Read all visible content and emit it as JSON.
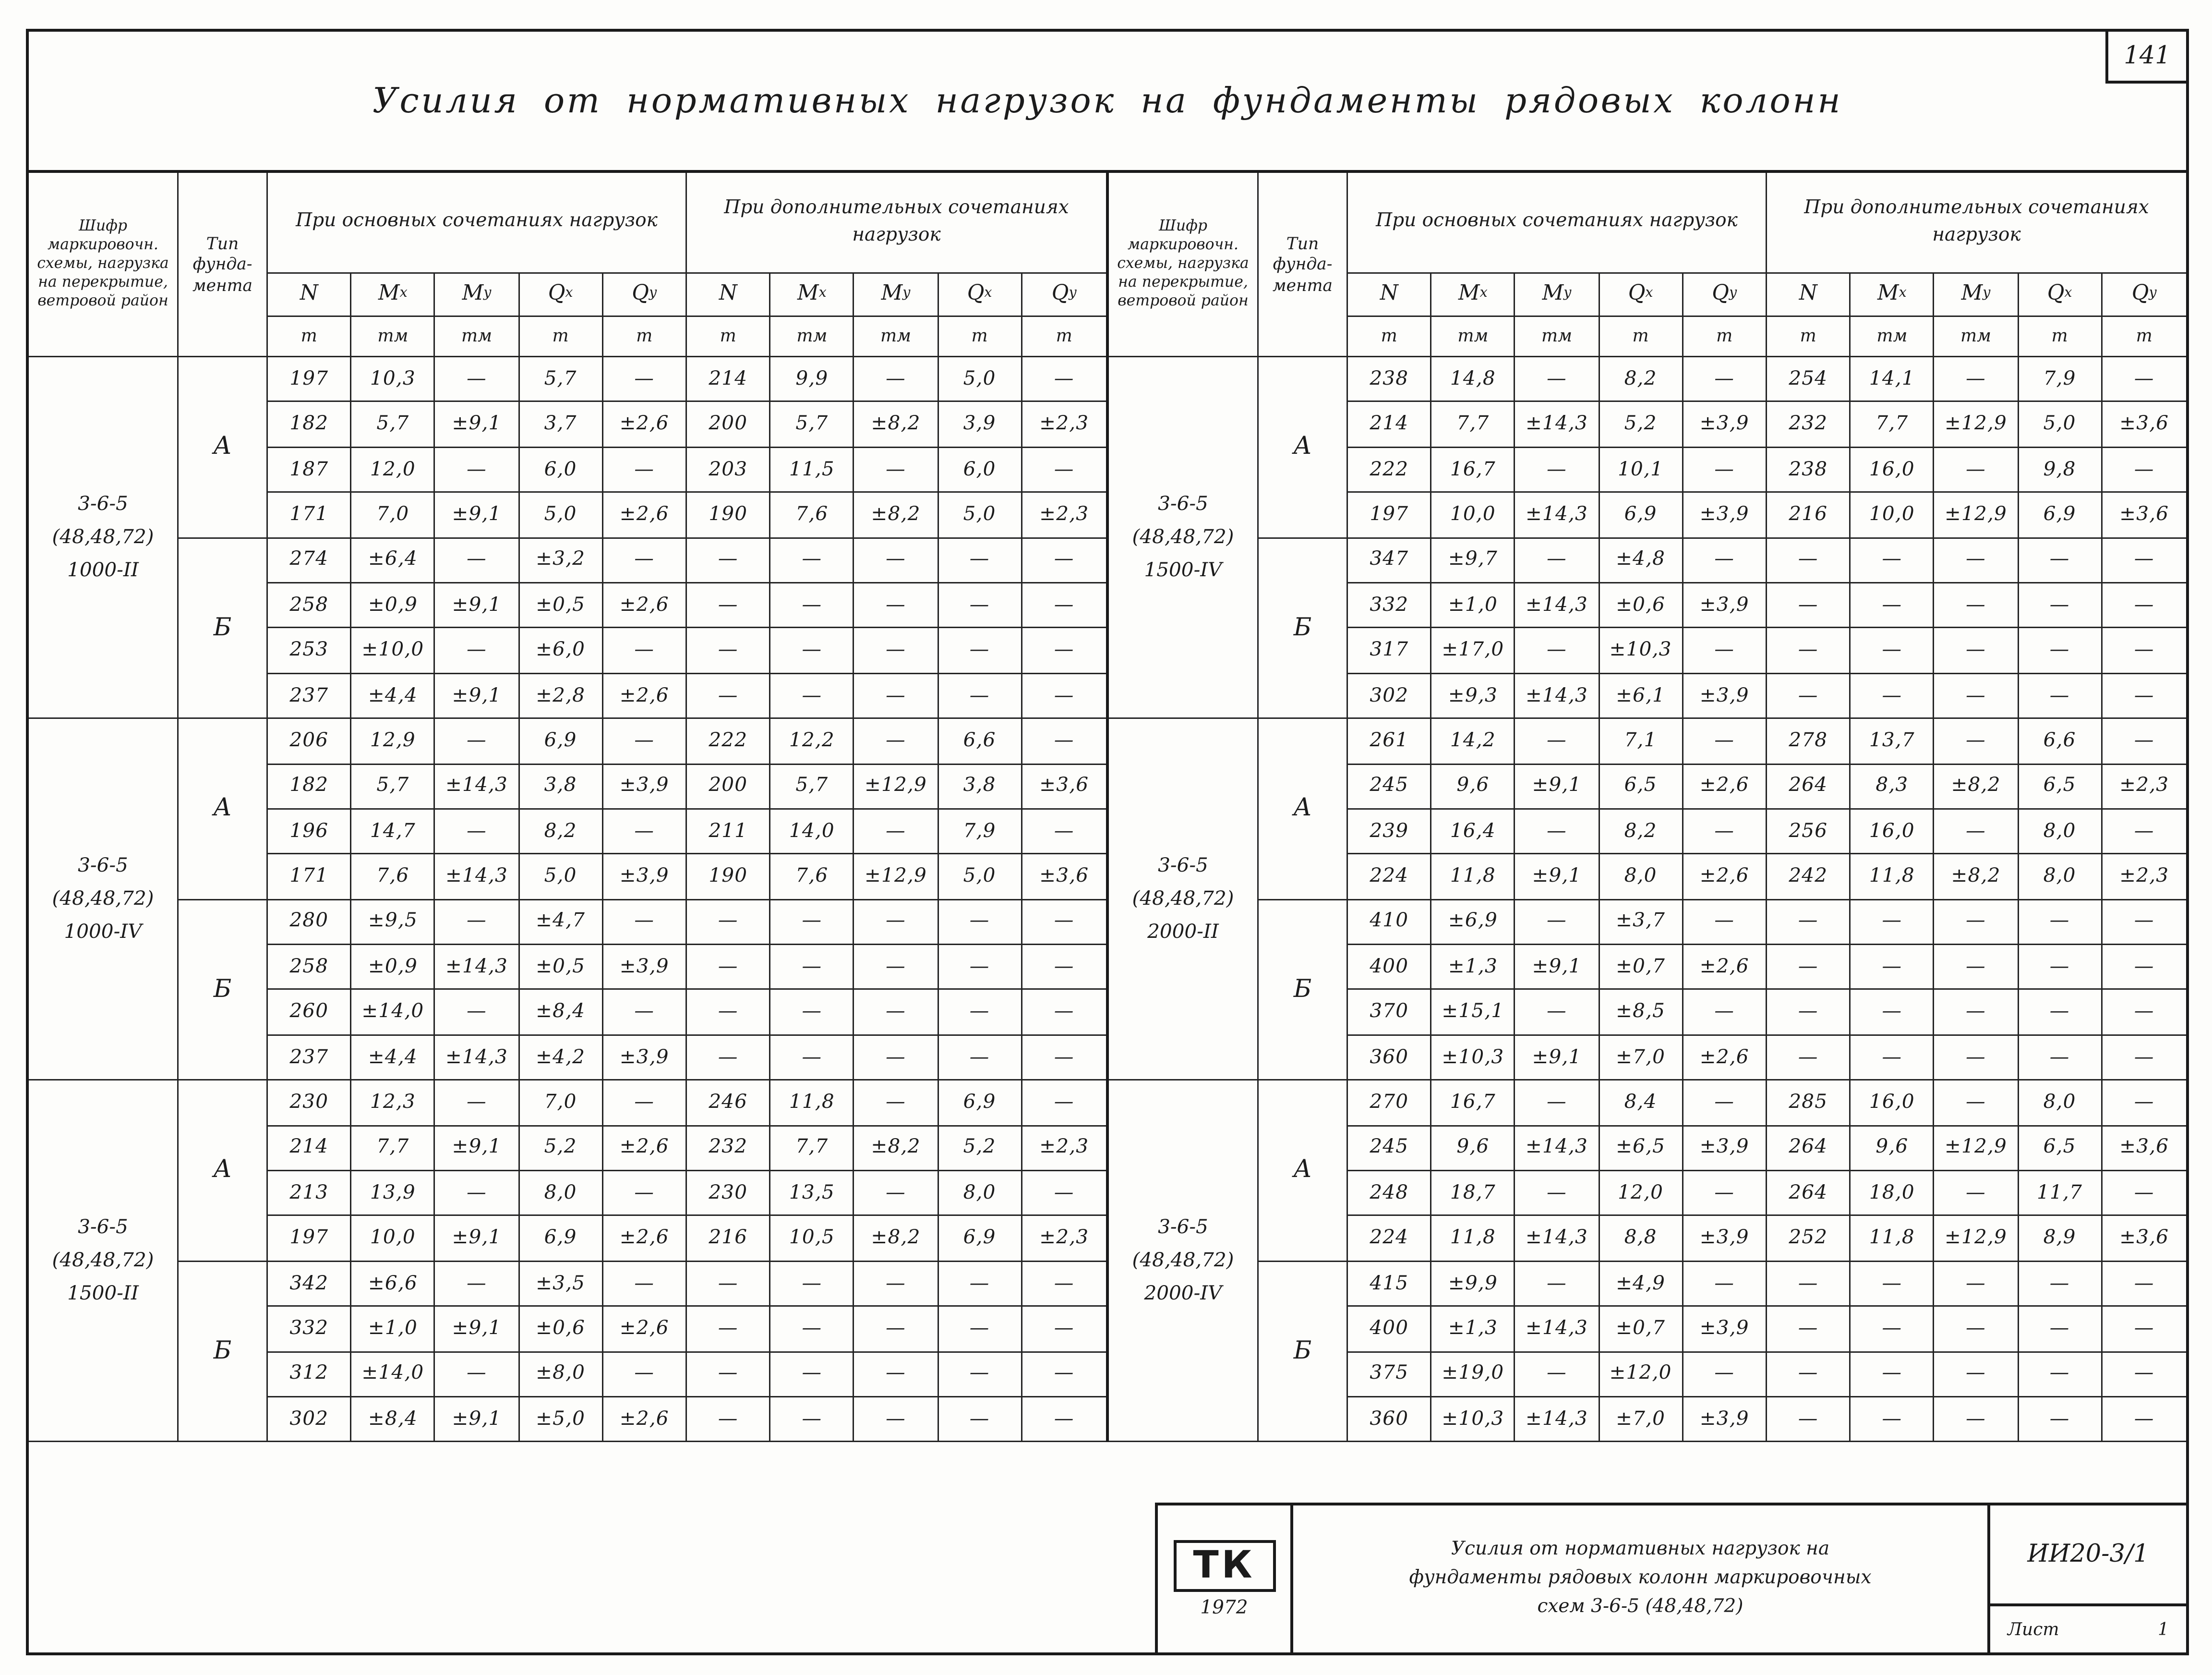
{
  "page": {
    "page_number": "141",
    "title": "Усилия от нормативных нагрузок на фундаменты рядовых колонн"
  },
  "table": {
    "col_headers": {
      "shifr": "Шифр маркировочн. схемы, нагрузка на перекрытие, ветровой район",
      "tip": "Тип фунда- мента",
      "main": "При основных сочетаниях нагрузок",
      "additional": "При дополнительных сочетаниях нагрузок",
      "symbols": [
        "N",
        "M~x",
        "M~y",
        "Q~x",
        "Q~y",
        "N",
        "M~x",
        "M~y",
        "Q~x",
        "Q~y"
      ],
      "units": [
        "т",
        "тм",
        "тм",
        "т",
        "т",
        "т",
        "тм",
        "тм",
        "т",
        "т"
      ]
    },
    "halves": [
      {
        "groups": [
          {
            "scheme_lines": [
              "3-6-5",
              "(48,48,72)",
              "1000-II"
            ],
            "sections": [
              {
                "type": "А",
                "rows": [
                  [
                    "197",
                    "10,3",
                    "—",
                    "5,7",
                    "—",
                    "214",
                    "9,9",
                    "—",
                    "5,0",
                    "—"
                  ],
                  [
                    "182",
                    "5,7",
                    "±9,1",
                    "3,7",
                    "±2,6",
                    "200",
                    "5,7",
                    "±8,2",
                    "3,9",
                    "±2,3"
                  ],
                  [
                    "187",
                    "12,0",
                    "—",
                    "6,0",
                    "—",
                    "203",
                    "11,5",
                    "—",
                    "6,0",
                    "—"
                  ],
                  [
                    "171",
                    "7,0",
                    "±9,1",
                    "5,0",
                    "±2,6",
                    "190",
                    "7,6",
                    "±8,2",
                    "5,0",
                    "±2,3"
                  ]
                ]
              },
              {
                "type": "Б",
                "rows": [
                  [
                    "274",
                    "±6,4",
                    "—",
                    "±3,2",
                    "—",
                    "—",
                    "—",
                    "—",
                    "—",
                    "—"
                  ],
                  [
                    "258",
                    "±0,9",
                    "±9,1",
                    "±0,5",
                    "±2,6",
                    "—",
                    "—",
                    "—",
                    "—",
                    "—"
                  ],
                  [
                    "253",
                    "±10,0",
                    "—",
                    "±6,0",
                    "—",
                    "—",
                    "—",
                    "—",
                    "—",
                    "—"
                  ],
                  [
                    "237",
                    "±4,4",
                    "±9,1",
                    "±2,8",
                    "±2,6",
                    "—",
                    "—",
                    "—",
                    "—",
                    "—"
                  ]
                ]
              }
            ]
          },
          {
            "scheme_lines": [
              "3-6-5",
              "(48,48,72)",
              "1000-IV"
            ],
            "sections": [
              {
                "type": "А",
                "rows": [
                  [
                    "206",
                    "12,9",
                    "—",
                    "6,9",
                    "—",
                    "222",
                    "12,2",
                    "—",
                    "6,6",
                    "—"
                  ],
                  [
                    "182",
                    "5,7",
                    "±14,3",
                    "3,8",
                    "±3,9",
                    "200",
                    "5,7",
                    "±12,9",
                    "3,8",
                    "±3,6"
                  ],
                  [
                    "196",
                    "14,7",
                    "—",
                    "8,2",
                    "—",
                    "211",
                    "14,0",
                    "—",
                    "7,9",
                    "—"
                  ],
                  [
                    "171",
                    "7,6",
                    "±14,3",
                    "5,0",
                    "±3,9",
                    "190",
                    "7,6",
                    "±12,9",
                    "5,0",
                    "±3,6"
                  ]
                ]
              },
              {
                "type": "Б",
                "rows": [
                  [
                    "280",
                    "±9,5",
                    "—",
                    "±4,7",
                    "—",
                    "—",
                    "—",
                    "—",
                    "—",
                    "—"
                  ],
                  [
                    "258",
                    "±0,9",
                    "±14,3",
                    "±0,5",
                    "±3,9",
                    "—",
                    "—",
                    "—",
                    "—",
                    "—"
                  ],
                  [
                    "260",
                    "±14,0",
                    "—",
                    "±8,4",
                    "—",
                    "—",
                    "—",
                    "—",
                    "—",
                    "—"
                  ],
                  [
                    "237",
                    "±4,4",
                    "±14,3",
                    "±4,2",
                    "±3,9",
                    "—",
                    "—",
                    "—",
                    "—",
                    "—"
                  ]
                ]
              }
            ]
          },
          {
            "scheme_lines": [
              "3-6-5",
              "(48,48,72)",
              "1500-II"
            ],
            "sections": [
              {
                "type": "А",
                "rows": [
                  [
                    "230",
                    "12,3",
                    "—",
                    "7,0",
                    "—",
                    "246",
                    "11,8",
                    "—",
                    "6,9",
                    "—"
                  ],
                  [
                    "214",
                    "7,7",
                    "±9,1",
                    "5,2",
                    "±2,6",
                    "232",
                    "7,7",
                    "±8,2",
                    "5,2",
                    "±2,3"
                  ],
                  [
                    "213",
                    "13,9",
                    "—",
                    "8,0",
                    "—",
                    "230",
                    "13,5",
                    "—",
                    "8,0",
                    "—"
                  ],
                  [
                    "197",
                    "10,0",
                    "±9,1",
                    "6,9",
                    "±2,6",
                    "216",
                    "10,5",
                    "±8,2",
                    "6,9",
                    "±2,3"
                  ]
                ]
              },
              {
                "type": "Б",
                "rows": [
                  [
                    "342",
                    "±6,6",
                    "—",
                    "±3,5",
                    "—",
                    "—",
                    "—",
                    "—",
                    "—",
                    "—"
                  ],
                  [
                    "332",
                    "±1,0",
                    "±9,1",
                    "±0,6",
                    "±2,6",
                    "—",
                    "—",
                    "—",
                    "—",
                    "—"
                  ],
                  [
                    "312",
                    "±14,0",
                    "—",
                    "±8,0",
                    "—",
                    "—",
                    "—",
                    "—",
                    "—",
                    "—"
                  ],
                  [
                    "302",
                    "±8,4",
                    "±9,1",
                    "±5,0",
                    "±2,6",
                    "—",
                    "—",
                    "—",
                    "—",
                    "—"
                  ]
                ]
              }
            ]
          }
        ]
      },
      {
        "groups": [
          {
            "scheme_lines": [
              "3-6-5",
              "(48,48,72)",
              "1500-IV"
            ],
            "sections": [
              {
                "type": "А",
                "rows": [
                  [
                    "238",
                    "14,8",
                    "—",
                    "8,2",
                    "—",
                    "254",
                    "14,1",
                    "—",
                    "7,9",
                    "—"
                  ],
                  [
                    "214",
                    "7,7",
                    "±14,3",
                    "5,2",
                    "±3,9",
                    "232",
                    "7,7",
                    "±12,9",
                    "5,0",
                    "±3,6"
                  ],
                  [
                    "222",
                    "16,7",
                    "—",
                    "10,1",
                    "—",
                    "238",
                    "16,0",
                    "—",
                    "9,8",
                    "—"
                  ],
                  [
                    "197",
                    "10,0",
                    "±14,3",
                    "6,9",
                    "±3,9",
                    "216",
                    "10,0",
                    "±12,9",
                    "6,9",
                    "±3,6"
                  ]
                ]
              },
              {
                "type": "Б",
                "rows": [
                  [
                    "347",
                    "±9,7",
                    "—",
                    "±4,8",
                    "—",
                    "—",
                    "—",
                    "—",
                    "—",
                    "—"
                  ],
                  [
                    "332",
                    "±1,0",
                    "±14,3",
                    "±0,6",
                    "±3,9",
                    "—",
                    "—",
                    "—",
                    "—",
                    "—"
                  ],
                  [
                    "317",
                    "±17,0",
                    "—",
                    "±10,3",
                    "—",
                    "—",
                    "—",
                    "—",
                    "—",
                    "—"
                  ],
                  [
                    "302",
                    "±9,3",
                    "±14,3",
                    "±6,1",
                    "±3,9",
                    "—",
                    "—",
                    "—",
                    "—",
                    "—"
                  ]
                ]
              }
            ]
          },
          {
            "scheme_lines": [
              "3-6-5",
              "(48,48,72)",
              "2000-II"
            ],
            "sections": [
              {
                "type": "А",
                "rows": [
                  [
                    "261",
                    "14,2",
                    "—",
                    "7,1",
                    "—",
                    "278",
                    "13,7",
                    "—",
                    "6,6",
                    "—"
                  ],
                  [
                    "245",
                    "9,6",
                    "±9,1",
                    "6,5",
                    "±2,6",
                    "264",
                    "8,3",
                    "±8,2",
                    "6,5",
                    "±2,3"
                  ],
                  [
                    "239",
                    "16,4",
                    "—",
                    "8,2",
                    "—",
                    "256",
                    "16,0",
                    "—",
                    "8,0",
                    "—"
                  ],
                  [
                    "224",
                    "11,8",
                    "±9,1",
                    "8,0",
                    "±2,6",
                    "242",
                    "11,8",
                    "±8,2",
                    "8,0",
                    "±2,3"
                  ]
                ]
              },
              {
                "type": "Б",
                "rows": [
                  [
                    "410",
                    "±6,9",
                    "—",
                    "±3,7",
                    "—",
                    "—",
                    "—",
                    "—",
                    "—",
                    "—"
                  ],
                  [
                    "400",
                    "±1,3",
                    "±9,1",
                    "±0,7",
                    "±2,6",
                    "—",
                    "—",
                    "—",
                    "—",
                    "—"
                  ],
                  [
                    "370",
                    "±15,1",
                    "—",
                    "±8,5",
                    "—",
                    "—",
                    "—",
                    "—",
                    "—",
                    "—"
                  ],
                  [
                    "360",
                    "±10,3",
                    "±9,1",
                    "±7,0",
                    "±2,6",
                    "—",
                    "—",
                    "—",
                    "—",
                    "—"
                  ]
                ]
              }
            ]
          },
          {
            "scheme_lines": [
              "3-6-5",
              "(48,48,72)",
              "2000-IV"
            ],
            "sections": [
              {
                "type": "А",
                "rows": [
                  [
                    "270",
                    "16,7",
                    "—",
                    "8,4",
                    "—",
                    "285",
                    "16,0",
                    "—",
                    "8,0",
                    "—"
                  ],
                  [
                    "245",
                    "9,6",
                    "±14,3",
                    "±6,5",
                    "±3,9",
                    "264",
                    "9,6",
                    "±12,9",
                    "6,5",
                    "±3,6"
                  ],
                  [
                    "248",
                    "18,7",
                    "—",
                    "12,0",
                    "—",
                    "264",
                    "18,0",
                    "—",
                    "11,7",
                    "—"
                  ],
                  [
                    "224",
                    "11,8",
                    "±14,3",
                    "8,8",
                    "±3,9",
                    "252",
                    "11,8",
                    "±12,9",
                    "8,9",
                    "±3,6"
                  ]
                ]
              },
              {
                "type": "Б",
                "rows": [
                  [
                    "415",
                    "±9,9",
                    "—",
                    "±4,9",
                    "—",
                    "—",
                    "—",
                    "—",
                    "—",
                    "—"
                  ],
                  [
                    "400",
                    "±1,3",
                    "±14,3",
                    "±0,7",
                    "±3,9",
                    "—",
                    "—",
                    "—",
                    "—",
                    "—"
                  ],
                  [
                    "375",
                    "±19,0",
                    "—",
                    "±12,0",
                    "—",
                    "—",
                    "—",
                    "—",
                    "—",
                    "—"
                  ],
                  [
                    "360",
                    "±10,3",
                    "±14,3",
                    "±7,0",
                    "±3,9",
                    "—",
                    "—",
                    "—",
                    "—",
                    "—"
                  ]
                ]
              }
            ]
          }
        ]
      }
    ]
  },
  "title_block": {
    "stamp_org": "ТК",
    "stamp_year": "1972",
    "description_lines": [
      "Усилия от нормативных нагрузок на",
      "фундаменты рядовых колонн маркировочных",
      "схем 3-6-5 (48,48,72)"
    ],
    "doc_number": "ИИ20-3/1",
    "sheet_label": "Лист",
    "sheet_number": "1"
  }
}
